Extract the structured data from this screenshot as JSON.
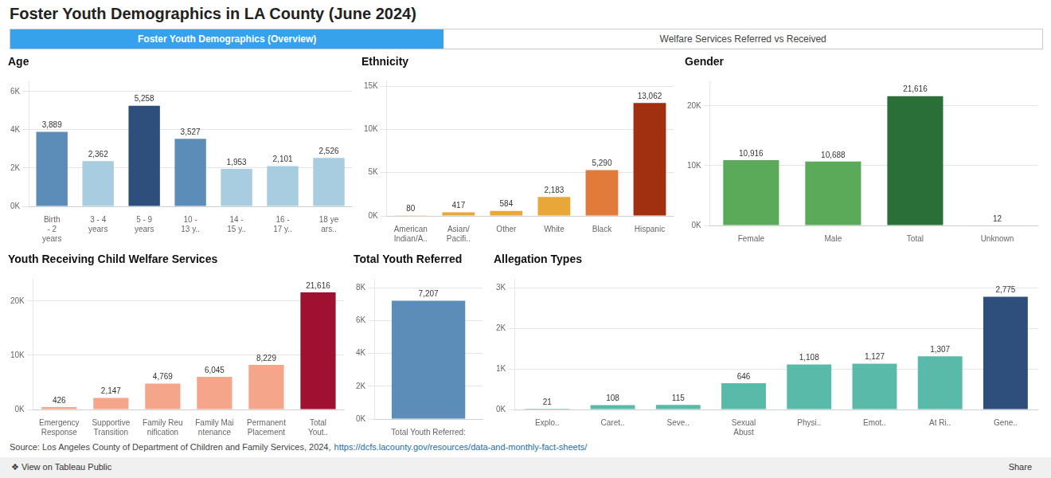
{
  "title": "Foster Youth Demographics in LA County (June 2024)",
  "annotations": [
    "Foster Youth Demographics (Overview)",
    "Welfare Services Referred vs Received",
    "Source: Los Angeles County of Department of Children and Family Services, 2024,",
    "https://dcfs.lacounty.gov/resources/data-and-monthly-fact-sheets/",
    "❖ View on Tableau Public",
    "Share"
  ],
  "chart_data": [
    {
      "type": "bar",
      "title": "Age",
      "categories": [
        "Birth\n- 2\nyears",
        "3 - 4\nyears",
        "5 - 9\nyears",
        "10 -\n13 y..",
        "14 -\n15 y..",
        "16 -\n17 y..",
        "18 ye\nars.."
      ],
      "values": [
        3889,
        2362,
        5258,
        3527,
        1953,
        2101,
        2526
      ],
      "value_labels": [
        "3,889",
        "2,362",
        "5,258",
        "3,527",
        "1,953",
        "2,101",
        "2,526"
      ],
      "colors": [
        "#5b8db8",
        "#a8cce0",
        "#2e4f7c",
        "#5b8db8",
        "#a8cce0",
        "#a8cce0",
        "#a8cce0"
      ],
      "ylim": [
        0,
        6500
      ],
      "yticks": [
        {
          "value": 0,
          "label": "0K"
        },
        {
          "value": 2000,
          "label": "2K"
        },
        {
          "value": 4000,
          "label": "4K"
        },
        {
          "value": 6000,
          "label": "6K"
        }
      ],
      "grid": true,
      "data_labels": true
    },
    {
      "type": "bar",
      "title": "Ethnicity",
      "categories": [
        "American\nIndian/A..",
        "Asian/\nPacifi..",
        "Other",
        "White",
        "Black",
        "Hispanic"
      ],
      "values": [
        80,
        417,
        584,
        2183,
        5290,
        13062
      ],
      "value_labels": [
        "80",
        "417",
        "584",
        "2,183",
        "5,290",
        "13,062"
      ],
      "colors": [
        "#e8a838",
        "#e8a838",
        "#e8a838",
        "#e8a838",
        "#e07b39",
        "#a03010"
      ],
      "ylim": [
        0,
        15500
      ],
      "yticks": [
        {
          "value": 0,
          "label": "0K"
        },
        {
          "value": 5000,
          "label": "5K"
        },
        {
          "value": 10000,
          "label": "10K"
        },
        {
          "value": 15000,
          "label": "15K"
        }
      ],
      "grid": true,
      "data_labels": true
    },
    {
      "type": "bar",
      "title": "Gender",
      "categories": [
        "Female",
        "Male",
        "Total",
        "Unknown"
      ],
      "values": [
        10916,
        10688,
        21616,
        12
      ],
      "value_labels": [
        "10,916",
        "10,688",
        "21,616",
        "12"
      ],
      "colors": [
        "#5aaa5a",
        "#5aaa5a",
        "#2a6e38",
        "#f5f5f0"
      ],
      "ylim": [
        0,
        24000
      ],
      "yticks": [
        {
          "value": 0,
          "label": "0K"
        },
        {
          "value": 10000,
          "label": "10K"
        },
        {
          "value": 20000,
          "label": "20K"
        }
      ],
      "grid": true,
      "data_labels": true
    },
    {
      "type": "bar",
      "title": "Youth Receiving Child Welfare Services",
      "categories": [
        "Emergency\nResponse",
        "Supportive\nTransition",
        "Family Reu\nnification",
        "Family Mai\nntenance",
        "Permanent\nPlacement",
        "Total\nYout.."
      ],
      "values": [
        426,
        2147,
        4769,
        6045,
        8229,
        21616
      ],
      "value_labels": [
        "426",
        "2,147",
        "4,769",
        "6,045",
        "8,229",
        "21,616"
      ],
      "colors": [
        "#f4a58a",
        "#f4a58a",
        "#f4a58a",
        "#f4a58a",
        "#f4a58a",
        "#a01030"
      ],
      "ylim": [
        0,
        24000
      ],
      "yticks": [
        {
          "value": 0,
          "label": "0K"
        },
        {
          "value": 10000,
          "label": "10K"
        },
        {
          "value": 20000,
          "label": "20K"
        }
      ],
      "grid": true,
      "data_labels": true
    },
    {
      "type": "bar",
      "title": "Total Youth Referred",
      "categories": [
        "Total Youth Referred:"
      ],
      "values": [
        7207
      ],
      "value_labels": [
        "7,207"
      ],
      "colors": [
        "#5b8db8"
      ],
      "ylim": [
        0,
        8500
      ],
      "yticks": [
        {
          "value": 0,
          "label": "0K"
        },
        {
          "value": 2000,
          "label": "2K"
        },
        {
          "value": 4000,
          "label": "4K"
        },
        {
          "value": 6000,
          "label": "6K"
        },
        {
          "value": 8000,
          "label": "8K"
        }
      ],
      "grid": true,
      "data_labels": true
    },
    {
      "type": "bar",
      "title": "Allegation Types",
      "categories": [
        "Explo..",
        "Caret..",
        "Seve..",
        "Sexual\nAbust",
        "Physi..",
        "Emot..",
        "At Ri..",
        "Gene.."
      ],
      "values": [
        21,
        108,
        115,
        646,
        1108,
        1127,
        1307,
        2775
      ],
      "value_labels": [
        "21",
        "108",
        "115",
        "646",
        "1,108",
        "1,127",
        "1,307",
        "2,775"
      ],
      "colors": [
        "#5abaaa",
        "#5abaaa",
        "#5abaaa",
        "#5abaaa",
        "#5abaaa",
        "#5abaaa",
        "#5abaaa",
        "#2e4f7c"
      ],
      "ylim": [
        0,
        3200
      ],
      "yticks": [
        {
          "value": 0,
          "label": "0K"
        },
        {
          "value": 1000,
          "label": "1K"
        },
        {
          "value": 2000,
          "label": "2K"
        },
        {
          "value": 3000,
          "label": "3K"
        }
      ],
      "grid": true,
      "data_labels": true
    }
  ]
}
